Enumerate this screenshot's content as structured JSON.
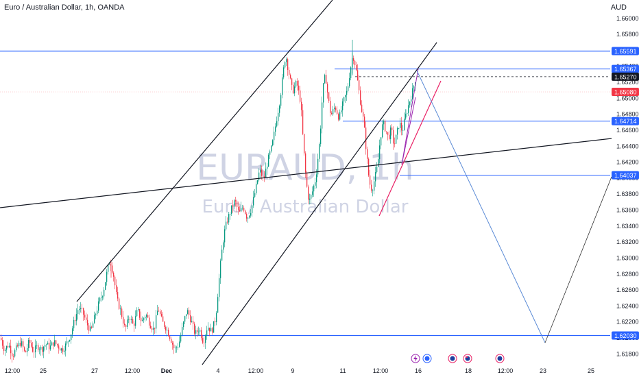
{
  "header": {
    "symbol_title": "Euro / Australian Dollar, 1h, OANDA",
    "currency": "AUD"
  },
  "watermark": {
    "ticker": "EURAUD, 1h",
    "name": "Euro / Australian Dollar"
  },
  "chart_data": {
    "type": "candlestick",
    "instrument": "EURAUD",
    "timeframe": "1h",
    "source": "OANDA",
    "y_axis": {
      "range": [
        1.617,
        1.6623
      ],
      "ticks": [
        "1.66000",
        "1.65800",
        "1.65600",
        "1.65400",
        "1.65200",
        "1.65000",
        "1.64800",
        "1.64600",
        "1.64400",
        "1.64200",
        "1.64000",
        "1.63800",
        "1.63600",
        "1.63400",
        "1.63200",
        "1.63000",
        "1.62800",
        "1.62600",
        "1.62400",
        "1.62200",
        "1.62000",
        "1.61800"
      ]
    },
    "x_axis": {
      "ticks": [
        "12:00",
        "25",
        "27",
        "12:00",
        "Dec",
        "4",
        "12:00",
        "9",
        "11",
        "12:00",
        "16",
        "18",
        "12:00",
        "23",
        "25"
      ]
    },
    "price_labels": [
      {
        "value": 1.65591,
        "text": "1.65591",
        "kind": "line",
        "color": "#2962ff"
      },
      {
        "value": 1.65367,
        "text": "1.65367",
        "kind": "line",
        "color": "#2962ff"
      },
      {
        "value": 1.6527,
        "text": "1.65270",
        "kind": "current",
        "color": "#131722"
      },
      {
        "value": 1.6508,
        "text": "1.65080",
        "kind": "bid",
        "color": "#f23645"
      },
      {
        "value": 1.64714,
        "text": "1.64714",
        "kind": "line",
        "color": "#2962ff"
      },
      {
        "value": 1.64037,
        "text": "1.64037",
        "kind": "line",
        "color": "#2962ff"
      },
      {
        "value": 1.6203,
        "text": "1.62030",
        "kind": "line",
        "color": "#2962ff"
      }
    ],
    "horizontal_levels": [
      1.65591,
      1.65367,
      1.64714,
      1.64037,
      1.6203
    ],
    "current_price": 1.6527,
    "bid_price": 1.6508,
    "colors": {
      "up": "#089981",
      "down": "#f23645",
      "level": "#2962ff",
      "trend": "#131722",
      "wedge_lower": "#e91e63",
      "wedge_upper": "#9c27b0",
      "projection": "#5b8bd6"
    },
    "candles_anchors": [
      [
        0,
        1.62
      ],
      [
        6,
        1.6185
      ],
      [
        12,
        1.6192
      ],
      [
        18,
        1.6178
      ],
      [
        24,
        1.6188
      ],
      [
        30,
        1.6195
      ],
      [
        36,
        1.618
      ],
      [
        42,
        1.6196
      ],
      [
        48,
        1.6183
      ],
      [
        54,
        1.619
      ],
      [
        60,
        1.6186
      ],
      [
        66,
        1.6193
      ],
      [
        72,
        1.6188
      ],
      [
        78,
        1.6195
      ],
      [
        84,
        1.619
      ],
      [
        90,
        1.6185
      ],
      [
        96,
        1.6192
      ],
      [
        102,
        1.6203
      ],
      [
        108,
        1.6222
      ],
      [
        114,
        1.6238
      ],
      [
        120,
        1.6232
      ],
      [
        126,
        1.6218
      ],
      [
        132,
        1.6208
      ],
      [
        138,
        1.6228
      ],
      [
        144,
        1.6245
      ],
      [
        150,
        1.6258
      ],
      [
        156,
        1.6285
      ],
      [
        160,
        1.6298
      ],
      [
        165,
        1.6278
      ],
      [
        170,
        1.6248
      ],
      [
        176,
        1.6232
      ],
      [
        182,
        1.621
      ],
      [
        188,
        1.6228
      ],
      [
        194,
        1.6215
      ],
      [
        200,
        1.6235
      ],
      [
        206,
        1.622
      ],
      [
        212,
        1.623
      ],
      [
        218,
        1.6218
      ],
      [
        224,
        1.621
      ],
      [
        230,
        1.6238
      ],
      [
        236,
        1.622
      ],
      [
        242,
        1.6212
      ],
      [
        248,
        1.62
      ],
      [
        254,
        1.6185
      ],
      [
        260,
        1.6192
      ],
      [
        266,
        1.6215
      ],
      [
        272,
        1.6235
      ],
      [
        278,
        1.6222
      ],
      [
        284,
        1.6205
      ],
      [
        290,
        1.6212
      ],
      [
        296,
        1.6195
      ],
      [
        302,
        1.6215
      ],
      [
        308,
        1.6208
      ],
      [
        314,
        1.6225
      ],
      [
        318,
        1.6265
      ],
      [
        322,
        1.6302
      ],
      [
        326,
        1.633
      ],
      [
        330,
        1.6345
      ],
      [
        336,
        1.636
      ],
      [
        342,
        1.6372
      ],
      [
        348,
        1.6355
      ],
      [
        354,
        1.6365
      ],
      [
        360,
        1.635
      ],
      [
        366,
        1.6362
      ],
      [
        372,
        1.6385
      ],
      [
        378,
        1.641
      ],
      [
        384,
        1.6398
      ],
      [
        390,
        1.6422
      ],
      [
        396,
        1.644
      ],
      [
        402,
        1.647
      ],
      [
        408,
        1.65
      ],
      [
        412,
        1.653
      ],
      [
        416,
        1.6555
      ],
      [
        420,
        1.6535
      ],
      [
        426,
        1.6508
      ],
      [
        432,
        1.652
      ],
      [
        438,
        1.6495
      ],
      [
        442,
        1.644
      ],
      [
        446,
        1.6395
      ],
      [
        450,
        1.637
      ],
      [
        454,
        1.638
      ],
      [
        460,
        1.64
      ],
      [
        466,
        1.645
      ],
      [
        470,
        1.651
      ],
      [
        474,
        1.653
      ],
      [
        478,
        1.65
      ],
      [
        482,
        1.6478
      ],
      [
        488,
        1.649
      ],
      [
        494,
        1.6475
      ],
      [
        500,
        1.6495
      ],
      [
        506,
        1.651
      ],
      [
        510,
        1.6535
      ],
      [
        514,
        1.6555
      ],
      [
        518,
        1.654
      ],
      [
        522,
        1.6515
      ],
      [
        526,
        1.649
      ],
      [
        530,
        1.647
      ],
      [
        534,
        1.643
      ],
      [
        538,
        1.6395
      ],
      [
        542,
        1.6385
      ],
      [
        546,
        1.64
      ],
      [
        550,
        1.6415
      ],
      [
        554,
        1.645
      ],
      [
        558,
        1.647
      ],
      [
        562,
        1.646
      ],
      [
        566,
        1.645
      ],
      [
        570,
        1.6462
      ],
      [
        574,
        1.644
      ],
      [
        578,
        1.6455
      ],
      [
        582,
        1.647
      ],
      [
        586,
        1.6458
      ],
      [
        590,
        1.6475
      ],
      [
        594,
        1.6488
      ],
      [
        598,
        1.65
      ],
      [
        602,
        1.6512
      ],
      [
        606,
        1.6527
      ]
    ]
  }
}
